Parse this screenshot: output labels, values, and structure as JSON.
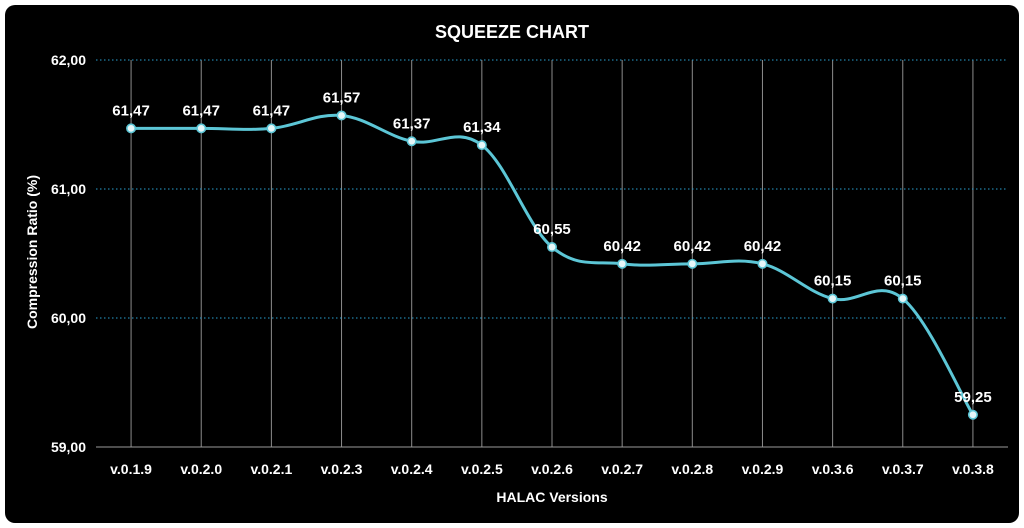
{
  "chart_data": {
    "type": "line",
    "title": "SQUEEZE CHART",
    "xlabel": "HALAC Versions",
    "ylabel": "Compression Ratio (%)",
    "categories": [
      "v.0.1.9",
      "v.0.2.0",
      "v.0.2.1",
      "v.0.2.3",
      "v.0.2.4",
      "v.0.2.5",
      "v.0.2.6",
      "v.0.2.7",
      "v.0.2.8",
      "v.0.2.9",
      "v.0.3.6",
      "v.0.3.7",
      "v.0.3.8"
    ],
    "series": [
      {
        "values": [
          61.47,
          61.47,
          61.47,
          61.57,
          61.37,
          61.34,
          60.55,
          60.42,
          60.42,
          60.42,
          60.15,
          60.15,
          59.25
        ],
        "labels": [
          "61,47",
          "61,47",
          "61,47",
          "61,57",
          "61,37",
          "61,34",
          "60,55",
          "60,42",
          "60,42",
          "60,42",
          "60,15",
          "60,15",
          "59,25"
        ]
      }
    ],
    "yticks": [
      59,
      60,
      61,
      62
    ],
    "ytick_labels": [
      "59,00",
      "60,00",
      "61,00",
      "62,00"
    ],
    "ylim": [
      59,
      62
    ],
    "grid": "horizontal-dotted and vertical",
    "legend": "none",
    "colors": {
      "background": "#000000",
      "line": "#5cc6d6",
      "marker_fill": "#e6f6f8",
      "grid_horizontal": "#2a9fd0",
      "grid_vertical": "#8c8c8c",
      "text": "#ffffff"
    }
  }
}
